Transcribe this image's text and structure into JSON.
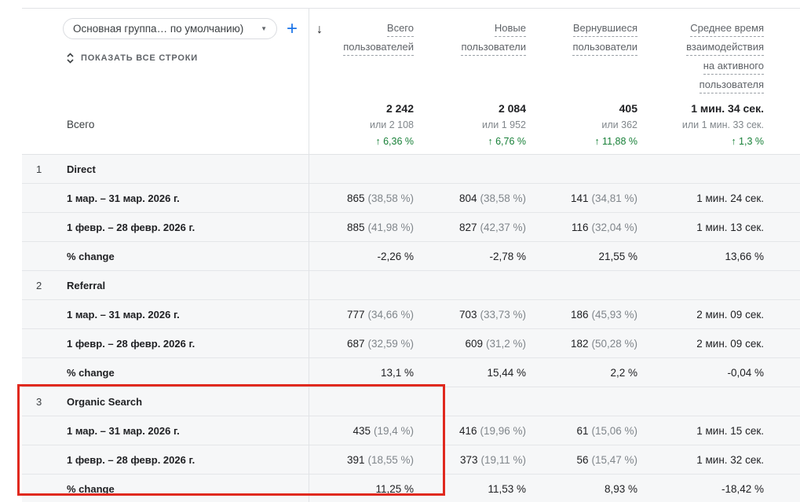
{
  "toolbar": {
    "dropdown_value": "Основная группа… по умолчанию)",
    "add_label": "+",
    "show_all_rows": "ПОКАЗАТЬ ВСЕ СТРОКИ"
  },
  "icons": {
    "sort_desc": "↓",
    "chevron_down": "▼",
    "unfold_more": "unfold-more-icon",
    "arrow_up": "↑"
  },
  "colors": {
    "accent_blue": "#1a73e8",
    "positive_green": "#188038",
    "annotation_red": "#e0291e",
    "row_background": "#f6f7f8",
    "divider": "#e1e3e6"
  },
  "columns": [
    {
      "lines": [
        "Всего",
        "пользователей"
      ],
      "sorted": true
    },
    {
      "lines": [
        "Новые",
        "пользователи"
      ],
      "sorted": false
    },
    {
      "lines": [
        "Вернувшиеся",
        "пользователи"
      ],
      "sorted": false
    },
    {
      "lines": [
        "Среднее время",
        "взаимодействия",
        "на активного",
        "пользователя"
      ],
      "sorted": false
    }
  ],
  "summary": {
    "label": "Всего",
    "metrics": [
      {
        "value": "2 242",
        "or": "или 2 108",
        "delta": "↑ 6,36 %"
      },
      {
        "value": "2 084",
        "or": "или 1 952",
        "delta": "↑ 6,76 %"
      },
      {
        "value": "405",
        "or": "или 362",
        "delta": "↑ 11,88 %"
      },
      {
        "value": "1 мин. 34 сек.",
        "or": "или 1 мин. 33 сек.",
        "delta": "↑ 1,3 %"
      }
    ]
  },
  "groups": [
    {
      "index": "1",
      "name": "Direct",
      "rows": [
        {
          "label": "1 мар. – 31 мар. 2026 г.",
          "cells": [
            {
              "value": "865",
              "share": "(38,58 %)"
            },
            {
              "value": "804",
              "share": "(38,58 %)"
            },
            {
              "value": "141",
              "share": "(34,81 %)"
            },
            {
              "value": "1 мин. 24 сек."
            }
          ]
        },
        {
          "label": "1 февр. – 28 февр. 2026 г.",
          "cells": [
            {
              "value": "885",
              "share": "(41,98 %)"
            },
            {
              "value": "827",
              "share": "(42,37 %)"
            },
            {
              "value": "116",
              "share": "(32,04 %)"
            },
            {
              "value": "1 мин. 13 сек."
            }
          ]
        },
        {
          "label": "% change",
          "cells": [
            {
              "value": "-2,26 %"
            },
            {
              "value": "-2,78 %"
            },
            {
              "value": "21,55 %"
            },
            {
              "value": "13,66 %"
            }
          ]
        }
      ]
    },
    {
      "index": "2",
      "name": "Referral",
      "rows": [
        {
          "label": "1 мар. – 31 мар. 2026 г.",
          "cells": [
            {
              "value": "777",
              "share": "(34,66 %)"
            },
            {
              "value": "703",
              "share": "(33,73 %)"
            },
            {
              "value": "186",
              "share": "(45,93 %)"
            },
            {
              "value": "2 мин. 09 сек."
            }
          ]
        },
        {
          "label": "1 февр. – 28 февр. 2026 г.",
          "cells": [
            {
              "value": "687",
              "share": "(32,59 %)"
            },
            {
              "value": "609",
              "share": "(31,2 %)"
            },
            {
              "value": "182",
              "share": "(50,28 %)"
            },
            {
              "value": "2 мин. 09 сек."
            }
          ]
        },
        {
          "label": "% change",
          "cells": [
            {
              "value": "13,1 %"
            },
            {
              "value": "15,44 %"
            },
            {
              "value": "2,2 %"
            },
            {
              "value": "-0,04 %"
            }
          ]
        }
      ]
    },
    {
      "index": "3",
      "name": "Organic Search",
      "highlighted": true,
      "rows": [
        {
          "label": "1 мар. – 31 мар. 2026 г.",
          "cells": [
            {
              "value": "435",
              "share": "(19,4 %)"
            },
            {
              "value": "416",
              "share": "(19,96 %)"
            },
            {
              "value": "61",
              "share": "(15,06 %)"
            },
            {
              "value": "1 мин. 15 сек."
            }
          ]
        },
        {
          "label": "1 февр. – 28 февр. 2026 г.",
          "cells": [
            {
              "value": "391",
              "share": "(18,55 %)"
            },
            {
              "value": "373",
              "share": "(19,11 %)"
            },
            {
              "value": "56",
              "share": "(15,47 %)"
            },
            {
              "value": "1 мин. 32 сек."
            }
          ]
        },
        {
          "label": "% change",
          "cells": [
            {
              "value": "11,25 %"
            },
            {
              "value": "11,53 %"
            },
            {
              "value": "8,93 %"
            },
            {
              "value": "-18,42 %"
            }
          ]
        }
      ]
    }
  ]
}
